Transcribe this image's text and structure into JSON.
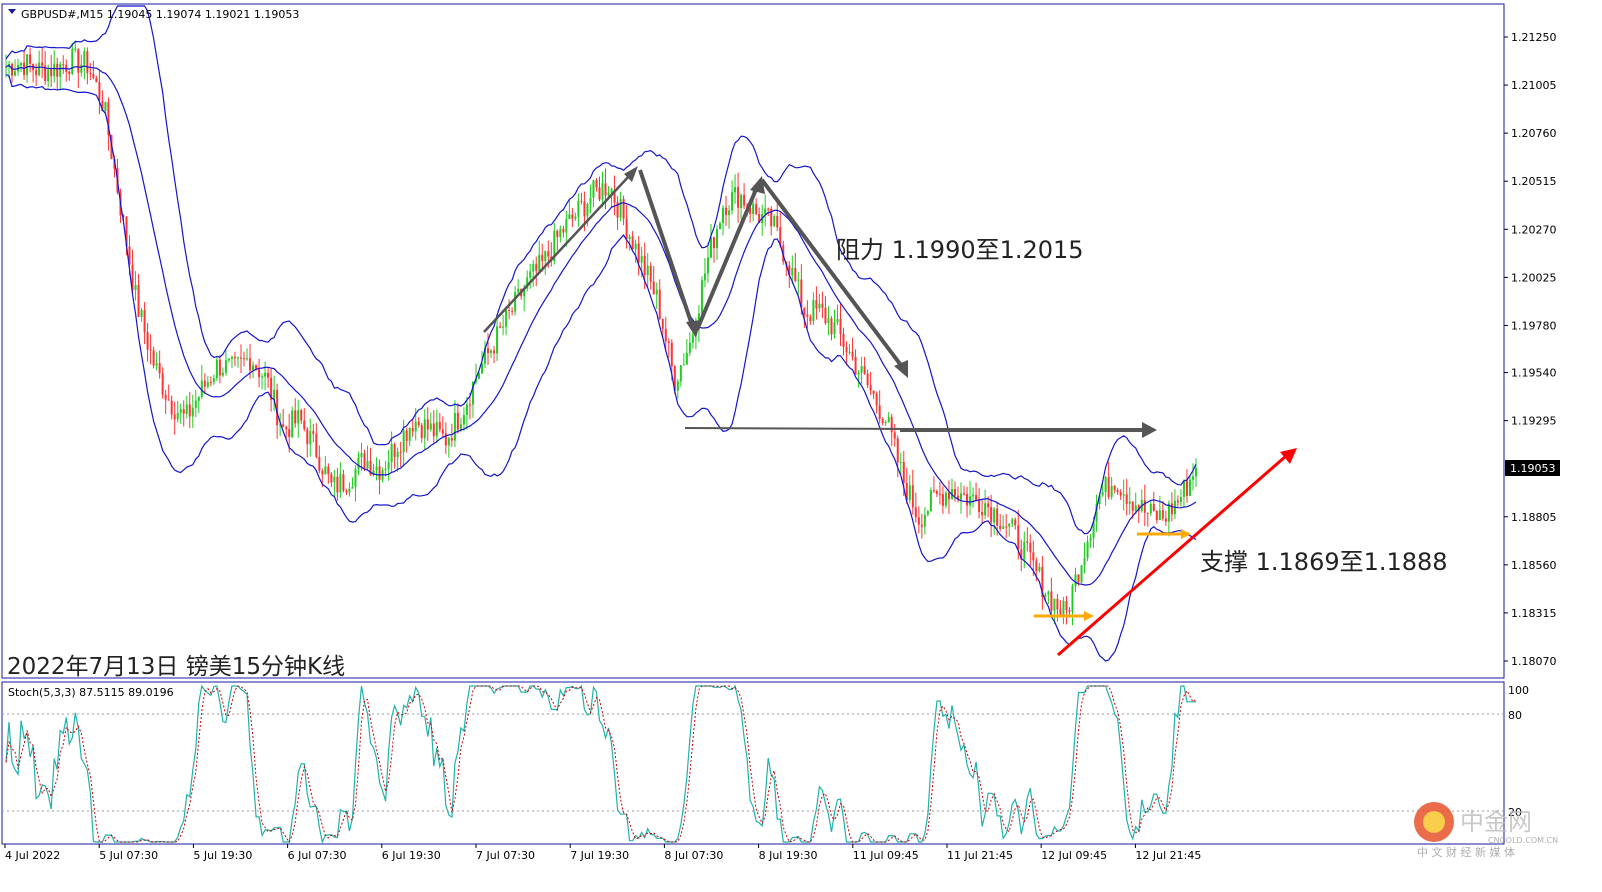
{
  "symbol_header": "GBPUSD#,M15  1.19045 1.19074 1.19021 1.19053",
  "caption": "2022年7月13日 镑美15分钟K线",
  "annotations": {
    "resistance": "阻力 1.1990至1.2015",
    "support": "支撑 1.1869至1.1888"
  },
  "price_axis": {
    "ticks": [
      "1.21250",
      "1.21005",
      "1.20760",
      "1.20515",
      "1.20270",
      "1.20025",
      "1.19780",
      "1.19540",
      "1.19295",
      "1.19053",
      "1.18805",
      "1.18560",
      "1.18315",
      "1.18070"
    ],
    "current": "1.19053"
  },
  "time_axis": {
    "ticks": [
      "4 Jul 2022",
      "5 Jul 07:30",
      "5 Jul 19:30",
      "6 Jul 07:30",
      "6 Jul 19:30",
      "7 Jul 07:30",
      "7 Jul 19:30",
      "8 Jul 07:30",
      "8 Jul 19:30",
      "11 Jul 09:45",
      "11 Jul 21:45",
      "12 Jul 09:45",
      "12 Jul 21:45"
    ]
  },
  "stoch_panel": {
    "label": "Stoch(5,3,3) 87.5115 89.0196",
    "ticks": [
      "100",
      "80",
      "20"
    ]
  },
  "watermark": {
    "name": "中金网",
    "site": "CNGOLD.COM.CN",
    "tagline": "中 文 财 经 新 媒 体"
  },
  "colors": {
    "bull": "#22cc22",
    "bear": "#ff3333",
    "band": "#1515cc",
    "arrow": "#555555",
    "trend": "#ff0000",
    "support_arrow": "#ffaa00",
    "stoch_main": "#20b2aa",
    "stoch_signal": "#cc0000"
  },
  "chart_data": [
    {
      "type": "candlestick",
      "symbol": "GBPUSD#",
      "timeframe": "M15",
      "title": "GBPUSD#,M15",
      "ylim": [
        1.1795,
        1.2145
      ],
      "x": [
        "4 Jul 2022",
        "5 Jul 07:30",
        "5 Jul 19:30",
        "6 Jul 07:30",
        "6 Jul 19:30",
        "7 Jul 07:30",
        "7 Jul 19:30",
        "8 Jul 07:30",
        "8 Jul 19:30",
        "11 Jul 09:45",
        "11 Jul 21:45",
        "12 Jul 09:45",
        "12 Jul 21:45"
      ],
      "close_path": [
        1.211,
        1.2112,
        1.2108,
        1.2109,
        1.2113,
        1.2111,
        1.209,
        1.204,
        1.199,
        1.196,
        1.194,
        1.193,
        1.1945,
        1.1958,
        1.1955,
        1.1962,
        1.195,
        1.1925,
        1.193,
        1.1915,
        1.1895,
        1.19,
        1.191,
        1.1905,
        1.1918,
        1.193,
        1.1925,
        1.192,
        1.1935,
        1.1955,
        1.197,
        1.1985,
        1.2,
        1.201,
        1.2025,
        1.2035,
        1.2045,
        1.205,
        1.203,
        1.201,
        1.199,
        1.195,
        1.197,
        1.201,
        1.204,
        1.2045,
        1.2035,
        1.203,
        1.201,
        1.1985,
        1.1985,
        1.1975,
        1.196,
        1.1945,
        1.193,
        1.19,
        1.188,
        1.189,
        1.1895,
        1.189,
        1.1888,
        1.188,
        1.187,
        1.1855,
        1.184,
        1.183,
        1.186,
        1.189,
        1.19,
        1.189,
        1.1882,
        1.188,
        1.189,
        1.1905
      ],
      "bollinger_bands": true,
      "last": 1.19053
    },
    {
      "type": "line",
      "title": "Stoch(5,3,3)",
      "series": [
        {
          "name": "main",
          "last": 87.5115
        },
        {
          "name": "signal",
          "last": 89.0196
        }
      ],
      "ylim": [
        0,
        100
      ],
      "levels": [
        20,
        80
      ]
    }
  ]
}
